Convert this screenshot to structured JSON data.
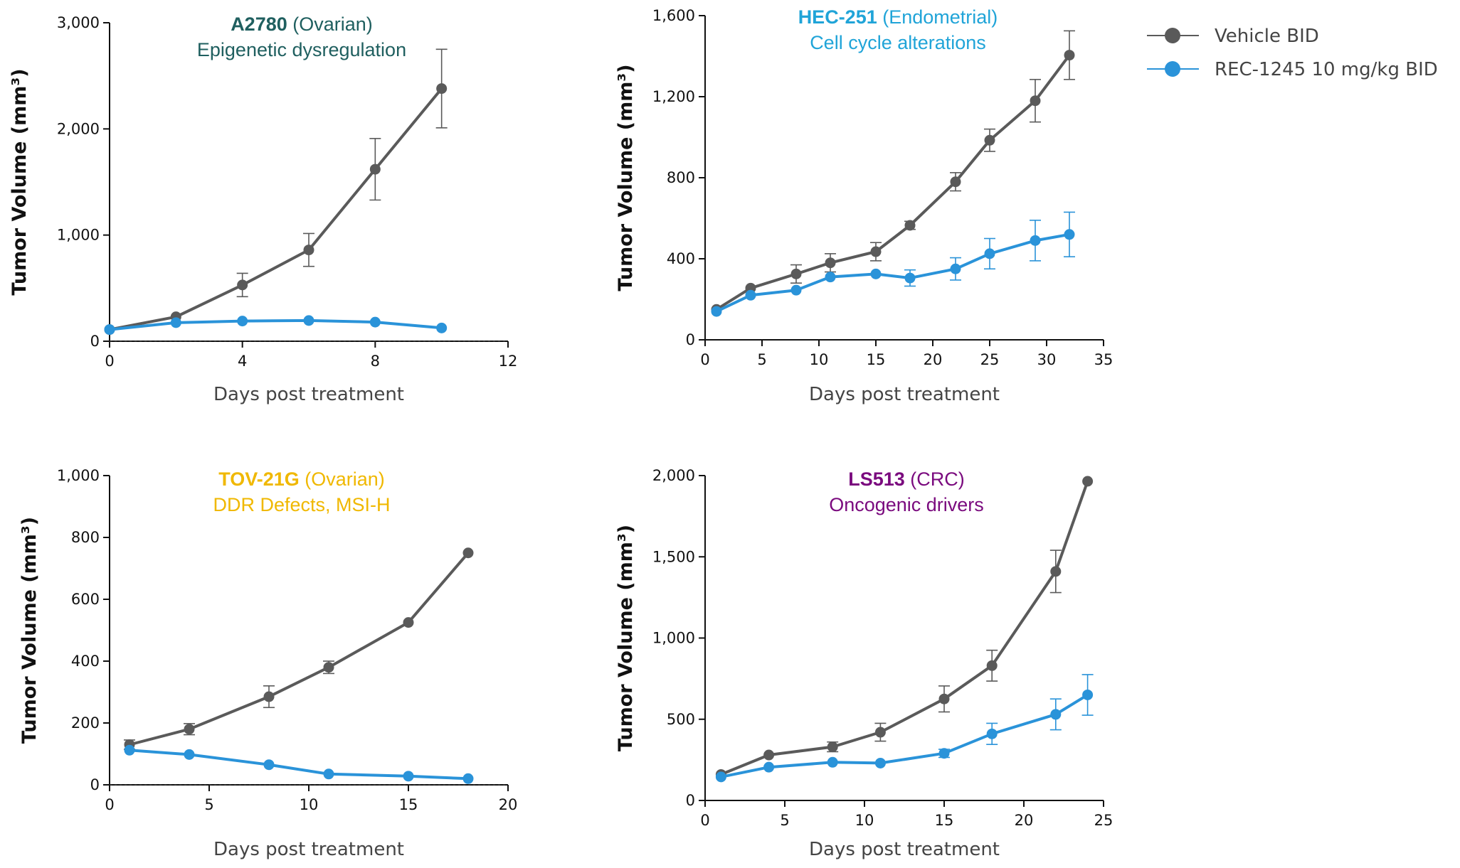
{
  "legend": {
    "vehicle": "Vehicle BID",
    "rec": "REC-1245 10 mg/kg BID"
  },
  "colors": {
    "vehicle": "#5a5a5a",
    "rec": "#2a93d9"
  },
  "chart_data": [
    {
      "type": "line",
      "title_bold": "A2780",
      "title_rest": " (Ovarian)",
      "subtitle": "Epigenetic dysregulation",
      "title_color": "#1f5f5f",
      "xlabel": "Days post treatment",
      "ylabel": "Tumor Volume (mm³)",
      "xlim": [
        0,
        12
      ],
      "ylim": [
        0,
        3000
      ],
      "xticks": [
        0,
        4,
        8,
        12
      ],
      "yticks": [
        0,
        1000,
        2000,
        3000
      ],
      "zero_line": true,
      "series": [
        {
          "name": "Vehicle BID",
          "key": "vehicle",
          "x": [
            0,
            2,
            4,
            6,
            8,
            10
          ],
          "y": [
            110,
            230,
            530,
            860,
            1620,
            2380
          ],
          "err": [
            0,
            0,
            110,
            155,
            290,
            370
          ]
        },
        {
          "name": "REC-1245 10 mg/kg BID",
          "key": "rec",
          "x": [
            0,
            2,
            4,
            6,
            8,
            10
          ],
          "y": [
            110,
            175,
            190,
            195,
            180,
            125
          ],
          "err": [
            0,
            0,
            0,
            0,
            0,
            0
          ]
        }
      ]
    },
    {
      "type": "line",
      "title_bold": "HEC-251",
      "title_rest": " (Endometrial)",
      "subtitle": "Cell cycle alterations",
      "title_color": "#20a4d8",
      "xlabel": "Days post treatment",
      "ylabel": "Tumor Volume (mm³)",
      "xlim": [
        0,
        35
      ],
      "ylim": [
        0,
        1600
      ],
      "xticks": [
        0,
        5,
        10,
        15,
        20,
        25,
        30,
        35
      ],
      "yticks": [
        0,
        400,
        800,
        1200,
        1600
      ],
      "zero_line": false,
      "series": [
        {
          "name": "Vehicle BID",
          "key": "vehicle",
          "x": [
            1,
            4,
            8,
            11,
            15,
            18,
            22,
            25,
            29,
            32
          ],
          "y": [
            150,
            255,
            325,
            380,
            435,
            565,
            780,
            985,
            1180,
            1405
          ],
          "err": [
            0,
            0,
            45,
            45,
            45,
            20,
            45,
            55,
            105,
            120
          ]
        },
        {
          "name": "REC-1245 10 mg/kg BID",
          "key": "rec",
          "x": [
            1,
            4,
            8,
            11,
            15,
            18,
            22,
            25,
            29,
            32
          ],
          "y": [
            140,
            220,
            245,
            310,
            325,
            305,
            350,
            425,
            490,
            520
          ],
          "err": [
            0,
            0,
            0,
            0,
            0,
            40,
            55,
            75,
            100,
            110
          ]
        }
      ]
    },
    {
      "type": "line",
      "title_bold": "TOV-21G",
      "title_rest": " (Ovarian)",
      "subtitle": "DDR Defects, MSI-H",
      "title_color": "#f0b800",
      "xlabel": "Days post treatment",
      "ylabel": "Tumor Volume (mm³)",
      "xlim": [
        0,
        20
      ],
      "ylim": [
        0,
        1000
      ],
      "xticks": [
        0,
        5,
        10,
        15,
        20
      ],
      "yticks": [
        0,
        200,
        400,
        600,
        800,
        1000
      ],
      "zero_line": true,
      "series": [
        {
          "name": "Vehicle BID",
          "key": "vehicle",
          "x": [
            1,
            4,
            8,
            11,
            15,
            18
          ],
          "y": [
            130,
            180,
            285,
            380,
            525,
            750
          ],
          "err": [
            15,
            18,
            35,
            20,
            0,
            0
          ]
        },
        {
          "name": "REC-1245 10 mg/kg BID",
          "key": "rec",
          "x": [
            1,
            4,
            8,
            11,
            15,
            18
          ],
          "y": [
            112,
            98,
            65,
            35,
            28,
            20
          ],
          "err": [
            0,
            0,
            0,
            0,
            0,
            0
          ]
        }
      ]
    },
    {
      "type": "line",
      "title_bold": "LS513",
      "title_rest": " (CRC)",
      "subtitle": "Oncogenic drivers",
      "title_color": "#7a0a7e",
      "xlabel": "Days post treatment",
      "ylabel": "Tumor Volume (mm³)",
      "xlim": [
        0,
        25
      ],
      "ylim": [
        0,
        2000
      ],
      "xticks": [
        0,
        5,
        10,
        15,
        20,
        25
      ],
      "yticks": [
        0,
        500,
        1000,
        1500,
        2000
      ],
      "zero_line": false,
      "series": [
        {
          "name": "Vehicle BID",
          "key": "vehicle",
          "x": [
            1,
            4,
            8,
            11,
            15,
            18,
            22,
            24
          ],
          "y": [
            160,
            280,
            330,
            420,
            625,
            830,
            1410,
            1965
          ],
          "err": [
            0,
            0,
            30,
            55,
            80,
            95,
            130,
            0
          ]
        },
        {
          "name": "REC-1245 10 mg/kg BID",
          "key": "rec",
          "x": [
            1,
            4,
            8,
            11,
            15,
            18,
            22,
            24
          ],
          "y": [
            145,
            205,
            235,
            230,
            290,
            410,
            530,
            650
          ],
          "err": [
            0,
            0,
            0,
            0,
            25,
            65,
            95,
            125
          ]
        }
      ]
    }
  ]
}
